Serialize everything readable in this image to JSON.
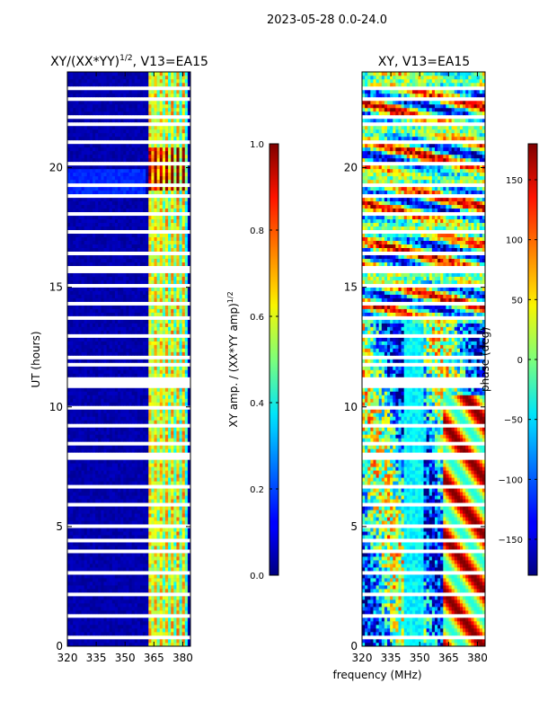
{
  "suptitle": "2023-05-28 0.0-24.0",
  "xlabel": "frequency (MHz)",
  "chart_data": [
    {
      "type": "heatmap",
      "title": "XY/(XX*YY)",
      "title_exponent": "1/2",
      "title_suffix": ", V13=EA15",
      "ylabel": "UT (hours)",
      "xlim": [
        320,
        384
      ],
      "ylim": [
        0,
        24
      ],
      "xticks": [
        "320",
        "335",
        "350",
        "365",
        "380"
      ],
      "xtick_values": [
        320,
        335,
        350,
        365,
        380
      ],
      "yticks": [
        "0",
        "5",
        "10",
        "15",
        "20"
      ],
      "ytick_values": [
        0,
        5,
        10,
        15,
        20
      ],
      "colorbar": {
        "label": "XY amp. / (XX*YY amp)",
        "label_exponent": "1/2",
        "range": [
          0.0,
          1.0
        ],
        "ticks": [
          "0.0",
          "0.2",
          "0.4",
          "0.6",
          "0.8",
          "1.0"
        ],
        "tick_values": [
          0.0,
          0.2,
          0.4,
          0.6,
          0.8,
          1.0
        ],
        "colormap": "jet"
      }
    },
    {
      "type": "heatmap",
      "title": "XY, V13=EA15",
      "ylabel": "",
      "xlim": [
        320,
        384
      ],
      "ylim": [
        0,
        24
      ],
      "xticks": [
        "320",
        "335",
        "350",
        "365",
        "380"
      ],
      "xtick_values": [
        320,
        335,
        350,
        365,
        380
      ],
      "yticks": [
        "0",
        "5",
        "10",
        "15",
        "20"
      ],
      "ytick_values": [
        0,
        5,
        10,
        15,
        20
      ],
      "colorbar": {
        "label": "phase (deg)",
        "range": [
          -180,
          180
        ],
        "ticks": [
          "−150",
          "−100",
          "−50",
          "0",
          "50",
          "100",
          "150"
        ],
        "tick_values": [
          -150,
          -100,
          -50,
          0,
          50,
          100,
          150
        ],
        "colormap": "jet"
      }
    }
  ]
}
